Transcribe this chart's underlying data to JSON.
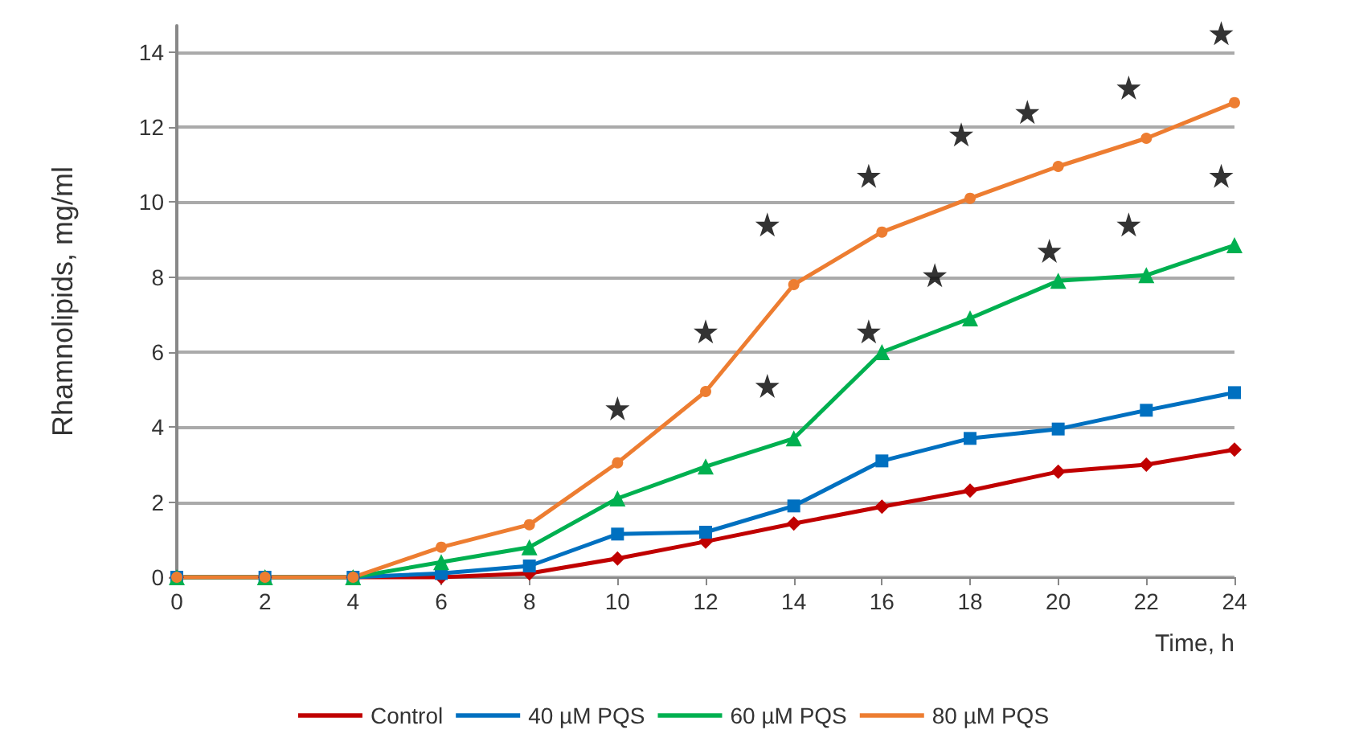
{
  "chart_data": {
    "type": "line",
    "xlabel": "Time, h",
    "ylabel": "Rhamnolipids, mg/ml",
    "x": [
      0,
      2,
      4,
      6,
      8,
      10,
      12,
      14,
      16,
      18,
      20,
      22,
      24
    ],
    "series": [
      {
        "name": "Control",
        "color": "#c00000",
        "marker": "diamond",
        "values": [
          0,
          0,
          0,
          0,
          0.1,
          0.5,
          0.95,
          1.43,
          1.88,
          2.31,
          2.81,
          3.0,
          3.4
        ]
      },
      {
        "name": "40 µM PQS",
        "color": "#0070c0",
        "marker": "square",
        "values": [
          0,
          0,
          0,
          0.1,
          0.3,
          1.15,
          1.2,
          1.9,
          3.1,
          3.7,
          3.95,
          4.45,
          4.92
        ]
      },
      {
        "name": "60 µM PQS",
        "color": "#00b050",
        "marker": "triangle",
        "values": [
          0,
          0,
          0,
          0.4,
          0.8,
          2.1,
          2.95,
          3.7,
          6.0,
          6.9,
          7.9,
          8.05,
          8.85
        ]
      },
      {
        "name": "80 µM PQS",
        "color": "#ed7d31",
        "marker": "circle",
        "values": [
          0,
          0,
          0,
          0.8,
          1.4,
          3.05,
          4.95,
          7.8,
          9.2,
          10.1,
          10.95,
          11.7,
          12.65
        ]
      },
      {
        "type": "scatter",
        "color": "#000000",
        "marker": "star",
        "x": [
          10,
          12,
          13.4,
          13.4,
          15.7,
          15.7,
          17.8,
          17.2,
          19.3,
          19.8,
          21.6,
          21.6,
          23.7,
          23.7
        ],
        "values": [
          4.5,
          6.55,
          9.4,
          5.1,
          10.7,
          6.55,
          11.8,
          8.05,
          12.4,
          8.7,
          13.05,
          9.4,
          14.5,
          10.7
        ]
      }
    ],
    "xlim": [
      0,
      24
    ],
    "xticks": [
      0,
      2,
      4,
      6,
      8,
      10,
      12,
      14,
      16,
      18,
      20,
      22,
      24
    ],
    "ylim": [
      0,
      14.7
    ],
    "yticks": [
      0,
      2,
      4,
      6,
      8,
      10,
      12,
      14
    ],
    "grid": "y",
    "legend": "bottom"
  }
}
